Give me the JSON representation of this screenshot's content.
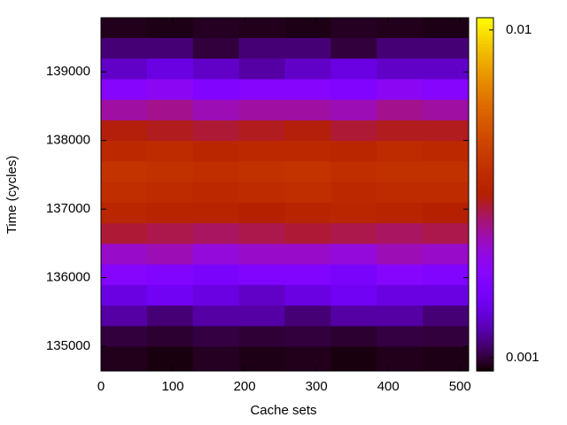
{
  "chart_data": {
    "type": "heatmap",
    "x_label": "Cache sets",
    "y_label": "Time (cycles)",
    "xbins": [
      0,
      64,
      128,
      192,
      256,
      320,
      384,
      448,
      512
    ],
    "ybins": [
      134640,
      135000,
      135300,
      135600,
      135900,
      136200,
      136500,
      136800,
      137100,
      137400,
      137700,
      138000,
      138300,
      138600,
      138900,
      139200,
      139500,
      139790
    ],
    "z": [
      [
        0.00095,
        0.00093,
        0.00096,
        0.00094,
        0.00095,
        0.00093,
        0.00095,
        0.00094
      ],
      [
        0.001,
        0.00098,
        0.00101,
        0.00099,
        0.001,
        0.00098,
        0.00101,
        0.001
      ],
      [
        0.0012,
        0.0011,
        0.0012,
        0.0012,
        0.0011,
        0.0012,
        0.0012,
        0.0011
      ],
      [
        0.0014,
        0.0015,
        0.0014,
        0.0013,
        0.0014,
        0.0015,
        0.0014,
        0.0014
      ],
      [
        0.0018,
        0.0017,
        0.0016,
        0.0017,
        0.0017,
        0.0016,
        0.0018,
        0.0017
      ],
      [
        0.0022,
        0.0023,
        0.0021,
        0.0022,
        0.0022,
        0.0021,
        0.0023,
        0.0022
      ],
      [
        0.0029,
        0.0028,
        0.0027,
        0.0028,
        0.0029,
        0.0028,
        0.0027,
        0.0028
      ],
      [
        0.0034,
        0.0033,
        0.0033,
        0.0032,
        0.0033,
        0.0034,
        0.0033,
        0.0032
      ],
      [
        0.0037,
        0.0036,
        0.0035,
        0.0036,
        0.0037,
        0.0035,
        0.0036,
        0.0036
      ],
      [
        0.0039,
        0.0038,
        0.0037,
        0.0038,
        0.0039,
        0.0037,
        0.0038,
        0.0038
      ],
      [
        0.0035,
        0.0036,
        0.0034,
        0.0035,
        0.0035,
        0.0034,
        0.0036,
        0.0035
      ],
      [
        0.0031,
        0.003,
        0.0029,
        0.003,
        0.0031,
        0.0029,
        0.003,
        0.003
      ],
      [
        0.0024,
        0.0025,
        0.0023,
        0.0024,
        0.0024,
        0.0023,
        0.0025,
        0.0024
      ],
      [
        0.0018,
        0.0019,
        0.0017,
        0.0018,
        0.0018,
        0.0017,
        0.0019,
        0.0018
      ],
      [
        0.0013,
        0.0014,
        0.0013,
        0.0012,
        0.0013,
        0.0014,
        0.0013,
        0.0013
      ],
      [
        0.0011,
        0.0011,
        0.001,
        0.0011,
        0.0011,
        0.001,
        0.0011,
        0.0011
      ],
      [
        0.00095,
        0.00094,
        0.00096,
        0.00095,
        0.00094,
        0.00096,
        0.00095,
        0.00094
      ]
    ],
    "xlim": [
      0,
      512
    ],
    "xticks": [
      0,
      100,
      200,
      300,
      400,
      500
    ],
    "ylim": [
      134640,
      139790
    ],
    "yticks": [
      135000,
      136000,
      137000,
      138000,
      139000
    ],
    "cblim": [
      0.00091,
      0.0109
    ],
    "cbticks": [
      0.001,
      0.01
    ],
    "cb_log": true
  }
}
